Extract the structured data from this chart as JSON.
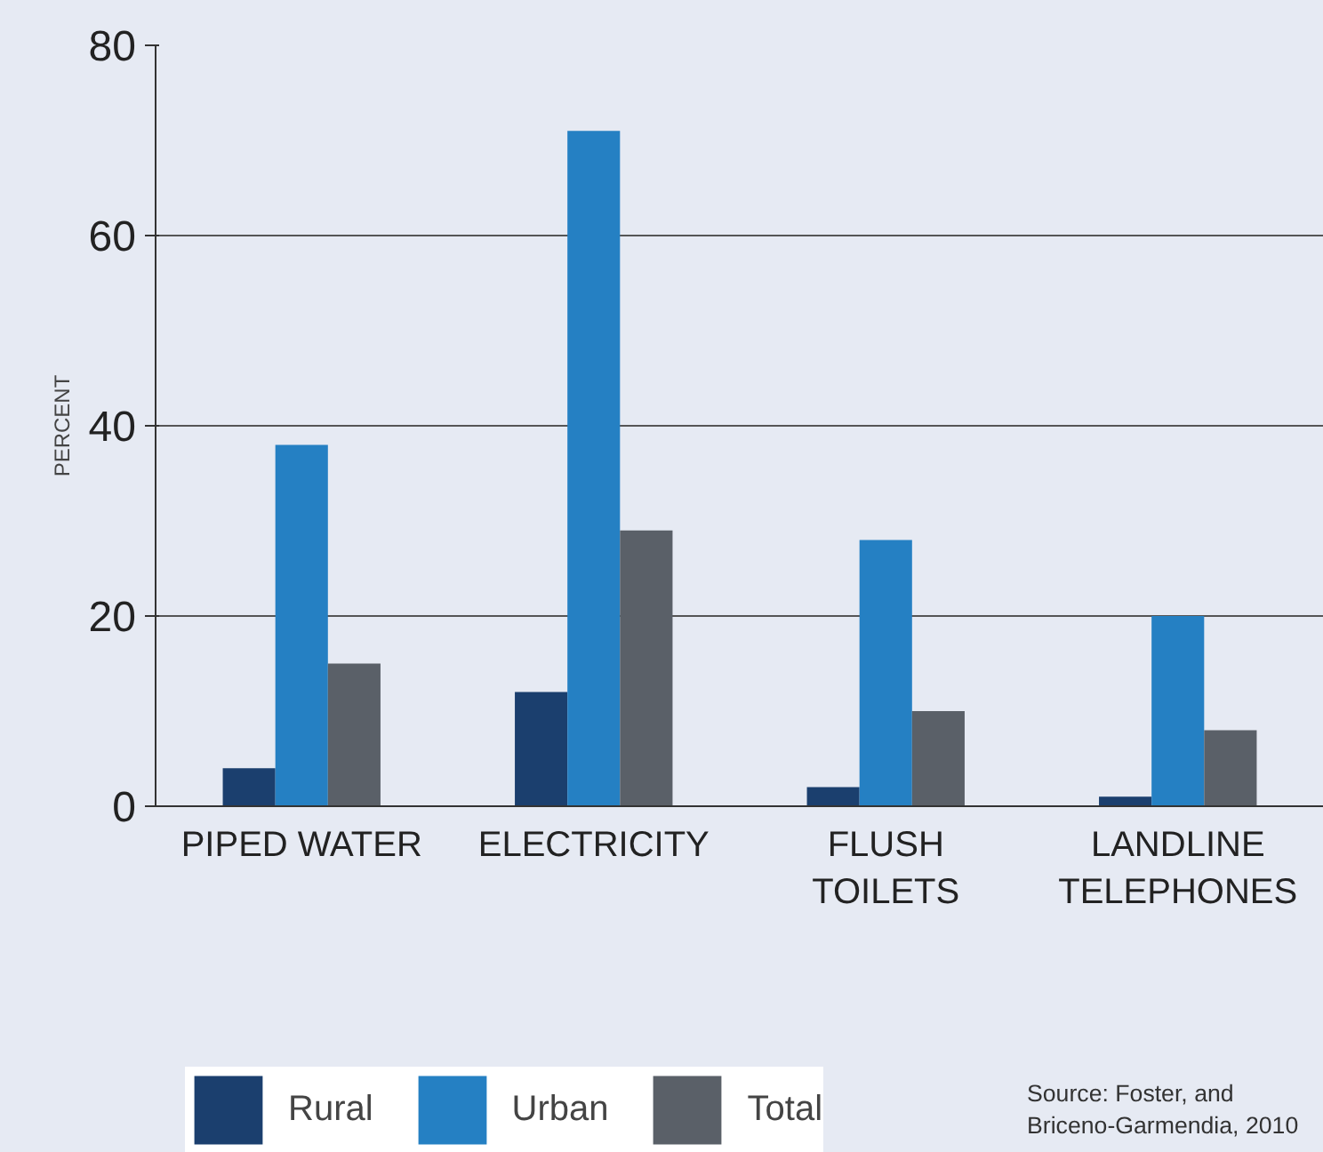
{
  "chart_data": {
    "type": "bar",
    "ylabel": "PERCENT",
    "categories": [
      "PIPED WATER",
      "ELECTRICITY",
      "FLUSH TOILETS",
      "LANDLINE TELEPHONES"
    ],
    "series": [
      {
        "name": "Rural",
        "color": "#1b3f6e",
        "values": [
          4,
          12,
          2,
          1
        ]
      },
      {
        "name": "Urban",
        "color": "#2580c3",
        "values": [
          38,
          71,
          28,
          20
        ]
      },
      {
        "name": "Total",
        "color": "#5a6068",
        "values": [
          15,
          29,
          10,
          8
        ]
      }
    ],
    "ylim": [
      0,
      80
    ],
    "yticks": [
      0,
      20,
      40,
      60,
      80
    ],
    "grid": "y",
    "legend": "bottom",
    "annotations": [
      "Source: Foster, and Briceno-Garmendia, 2010"
    ]
  }
}
